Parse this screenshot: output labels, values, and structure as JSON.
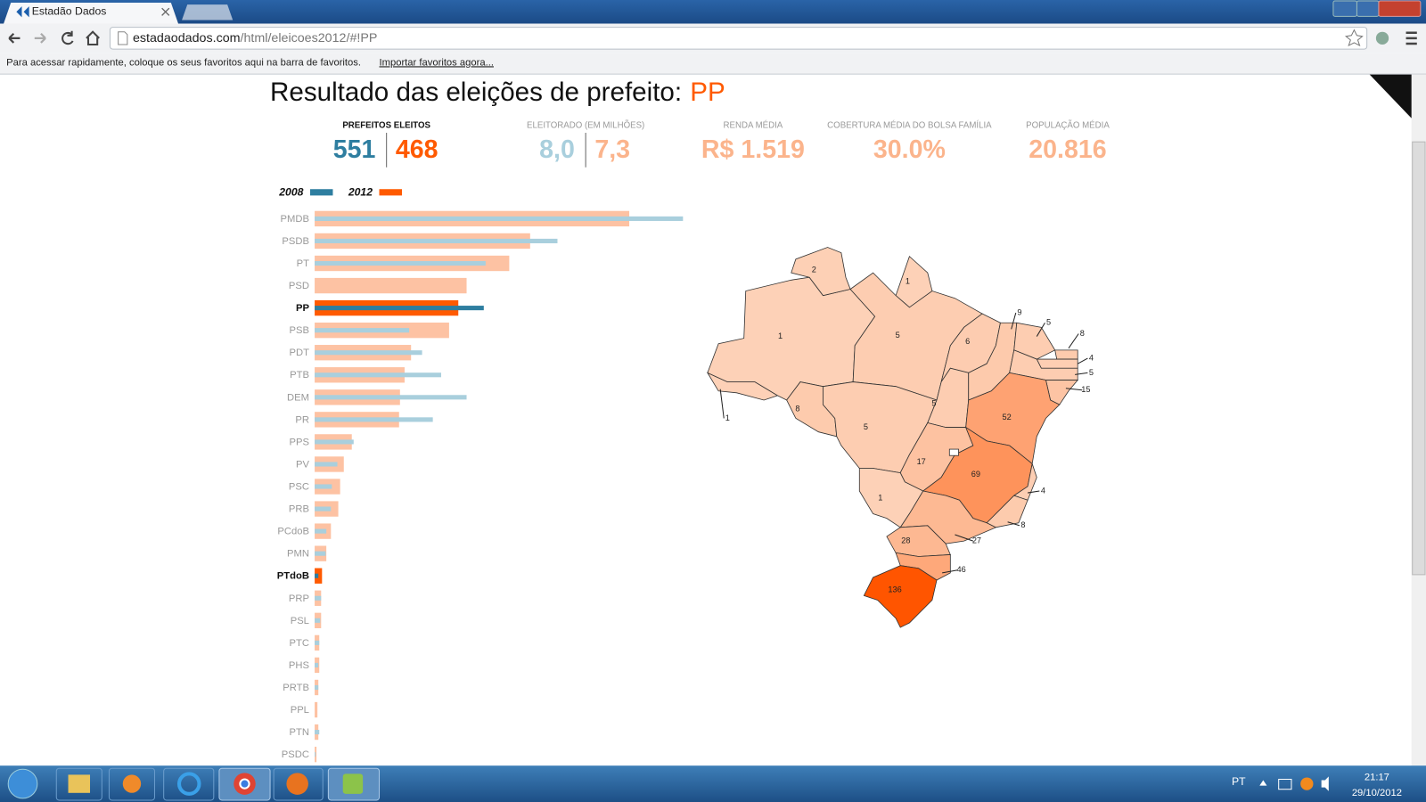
{
  "browser": {
    "tab_title": "Estadão Dados",
    "url_domain": "estadaodados.com",
    "url_path": "/html/eleicoes2012/#!PP",
    "bookmarks_text": "Para acessar rapidamente, coloque os seus favoritos aqui na barra de favoritos.",
    "bookmarks_link": "Importar favoritos agora..."
  },
  "page": {
    "title": "Resultado das eleições de prefeito:",
    "party": "PP",
    "stats": [
      {
        "label": "PREFEITOS ELEITOS",
        "values": [
          "551",
          "468"
        ]
      },
      {
        "label": "ELEITORADO (EM MILHÕES)",
        "values": [
          "8,0",
          "7,3"
        ]
      },
      {
        "label": "RENDA MÉDIA",
        "values": [
          "R$ 1.519"
        ]
      },
      {
        "label": "COBERTURA MÉDIA DO BOLSA FAMÍLIA",
        "values": [
          "30.0%"
        ]
      },
      {
        "label": "POPULAÇÃO MÉDIA",
        "values": [
          "20.816"
        ]
      }
    ]
  },
  "chart_data": {
    "type": "bar",
    "orientation": "horizontal",
    "categories": [
      "PMDB",
      "PSDB",
      "PT",
      "PSD",
      "PP",
      "PSB",
      "PDT",
      "PTB",
      "DEM",
      "PR",
      "PPS",
      "PV",
      "PSC",
      "PRB",
      "PCdoB",
      "PMN",
      "PTdoB",
      "PRP",
      "PSL",
      "PTC",
      "PHS",
      "PRTB",
      "PPL",
      "PTN",
      "PSDC"
    ],
    "series": [
      {
        "name": "2008",
        "color": "#2e7ea0",
        "light_color": "#a9cfdd",
        "values": [
          1200,
          791,
          557,
          null,
          551,
          308,
          350,
          412,
          495,
          385,
          127,
          74,
          56,
          53,
          38,
          36,
          12,
          21,
          18,
          15,
          12,
          12,
          null,
          15,
          3
        ]
      },
      {
        "name": "2012",
        "color": "#ff5a00",
        "light_color": "#fdc2a3",
        "values": [
          1025,
          702,
          634,
          495,
          468,
          438,
          314,
          293,
          278,
          275,
          121,
          95,
          83,
          77,
          53,
          38,
          24,
          21,
          21,
          15,
          15,
          12,
          9,
          12,
          6
        ]
      }
    ],
    "highlight": [
      4,
      16
    ]
  },
  "map": {
    "colors": [
      "#fdd2b8",
      "#ff5500"
    ],
    "values": [
      1,
      1,
      2,
      1,
      5,
      8,
      5,
      6,
      5,
      9,
      5,
      8,
      4,
      5,
      15,
      52,
      17,
      1,
      69,
      4,
      8,
      27,
      28,
      46,
      136
    ]
  },
  "taskbar": {
    "language": "PT",
    "time": "21:17",
    "date": "29/10/2012"
  }
}
